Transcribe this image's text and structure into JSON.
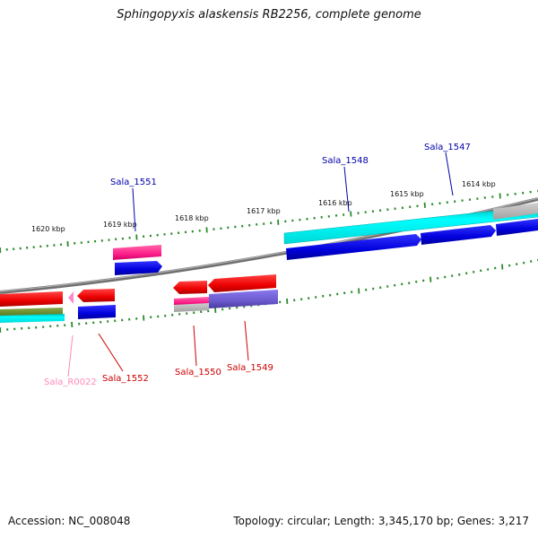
{
  "header": {
    "title": "Sphingopyxis alaskensis RB2256, complete genome"
  },
  "footer": {
    "accession": "Accession: NC_008048",
    "stats": "Topology: circular; Length: 3,345,170 bp; Genes: 3,217"
  },
  "scale": {
    "ticks": [
      "1620 kbp",
      "1619 kbp",
      "1618 kbp",
      "1617 kbp",
      "1616 kbp",
      "1615 kbp",
      "1614 kbp"
    ]
  },
  "genes": {
    "labels": [
      "Sala_1551",
      "Sala_1548",
      "Sala_1547",
      "Sala_R0022",
      "Sala_1552",
      "Sala_1550",
      "Sala_1549"
    ]
  },
  "colors": {
    "forward_gene": "#0000dd",
    "reverse_gene": "#ee0000",
    "rrna": "#00e0e0",
    "trna": "#ff3399",
    "misc": "#6a5acd",
    "other": "#6b8e23",
    "gray": "#b0b0b0",
    "tick": "#2e8b2e",
    "backbone": "#808080",
    "label_forward": "#0000aa",
    "label_reverse": "#cc0000",
    "label_rna": "#ff88bb"
  }
}
